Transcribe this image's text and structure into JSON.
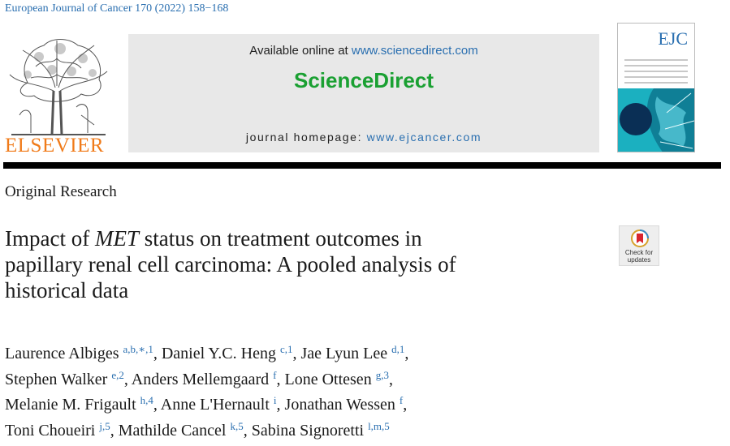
{
  "header": {
    "citation": "European Journal of Cancer 170 (2022) 158−168",
    "publisher_logo_text": "ELSEVIER",
    "available_prefix": "Available online at ",
    "available_link": "www.sciencedirect.com",
    "sciencedirect_brand": "ScienceDirect",
    "homepage_prefix": "journal homepage: ",
    "homepage_link": "www.ejcancer.com",
    "cover_title": "EJC"
  },
  "article_type": "Original Research",
  "title": {
    "line1_before": "Impact of ",
    "line1_italic": "MET",
    "line1_after": " status on treatment outcomes in",
    "line2": "papillary renal cell carcinoma: A pooled analysis of",
    "line3": "historical data"
  },
  "check_updates": {
    "line1": "Check for",
    "line2": "updates"
  },
  "authors": [
    {
      "name": "Laurence Albiges",
      "aff": "a,b,∗,1",
      "sep": ", "
    },
    {
      "name": "Daniel Y.C. Heng",
      "aff": "c,1",
      "sep": ", "
    },
    {
      "name": "Jae Lyun Lee",
      "aff": "d,1",
      "sep": ","
    },
    {
      "name": "Stephen Walker",
      "aff": "e,2",
      "sep": ", "
    },
    {
      "name": "Anders Mellemgaard",
      "aff": "f",
      "sep": ", "
    },
    {
      "name": "Lone Ottesen",
      "aff": "g,3",
      "sep": ","
    },
    {
      "name": "Melanie M. Frigault",
      "aff": "h,4",
      "sep": ", "
    },
    {
      "name": "Anne L'Hernault",
      "aff": "i",
      "sep": ", "
    },
    {
      "name": "Jonathan Wessen",
      "aff": "f",
      "sep": ","
    },
    {
      "name": "Toni Choueiri",
      "aff": "j,5",
      "sep": ", "
    },
    {
      "name": "Mathilde Cancel",
      "aff": "k,5",
      "sep": ", "
    },
    {
      "name": "Sabina Signoretti",
      "aff": "l,m,5",
      "sep": ""
    }
  ],
  "colors": {
    "link": "#2a6fb0",
    "elsevier_orange": "#f07b1a",
    "sciencedirect_green": "#1aa032",
    "panel_gray": "#e8e8e8"
  }
}
